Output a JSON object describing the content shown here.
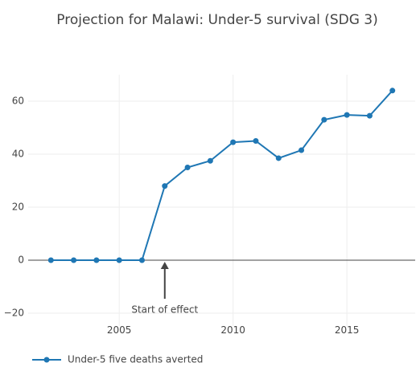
{
  "chart_data": {
    "type": "line",
    "title": "Projection for Malawi: Under-5 survival (SDG 3)",
    "x": [
      2002,
      2003,
      2004,
      2005,
      2006,
      2007,
      2008,
      2009,
      2010,
      2011,
      2012,
      2013,
      2014,
      2015,
      2016,
      2017
    ],
    "series": [
      {
        "name": "Under-5 five deaths averted",
        "color": "#1f77b4",
        "values": [
          0,
          0,
          0,
          0,
          0,
          28,
          35,
          37.5,
          44.5,
          45,
          38.5,
          41.5,
          53,
          54.8,
          54.5,
          64
        ]
      }
    ],
    "xlim": [
      2001,
      2018
    ],
    "xticks": [
      2005,
      2010,
      2015
    ],
    "ylim": [
      -25,
      70
    ],
    "yticks": [
      {
        "value": -20,
        "label": "−20"
      },
      0,
      20,
      40,
      60
    ],
    "grid": true,
    "legend": "bottom-left",
    "annotation": {
      "text": "Start of effect",
      "x": 2007,
      "y": 0
    }
  }
}
